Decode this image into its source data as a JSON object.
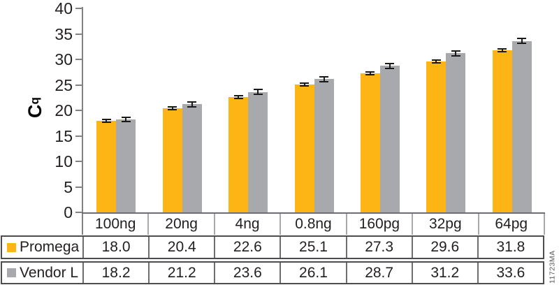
{
  "watermark": "11723MA",
  "colors": {
    "promega_orange": "#FCB515",
    "vendor_gray": "#A7A9AC",
    "axis_line": "#808285",
    "error_bar": "#1A1A1A",
    "text": "#231F20"
  },
  "chart_data": {
    "type": "bar",
    "title": "",
    "ylabel_base": "C",
    "ylabel_sub": "q",
    "xlabel": "",
    "ylim": [
      0,
      40
    ],
    "yticks": [
      40,
      35,
      30,
      25,
      20,
      15,
      10,
      5,
      0
    ],
    "grid": false,
    "legend_position": "table-rows-left",
    "categories": [
      "100ng",
      "20ng",
      "4ng",
      "0.8ng",
      "160pg",
      "32pg",
      "64pg"
    ],
    "series": [
      {
        "name": "Promega",
        "color": "#FCB515",
        "values": [
          18.0,
          20.4,
          22.6,
          25.1,
          27.3,
          29.6,
          31.8
        ],
        "display_values": [
          "18.0",
          "20.4",
          "22.6",
          "25.1",
          "27.3",
          "29.6",
          "31.8"
        ],
        "error": 0.25
      },
      {
        "name": "Vendor L",
        "color": "#A7A9AC",
        "values": [
          18.2,
          21.2,
          23.6,
          26.1,
          28.7,
          31.2,
          33.6
        ],
        "display_values": [
          "18.2",
          "21.2",
          "23.6",
          "26.1",
          "28.7",
          "31.2",
          "33.6"
        ],
        "error": 0.45
      }
    ]
  }
}
